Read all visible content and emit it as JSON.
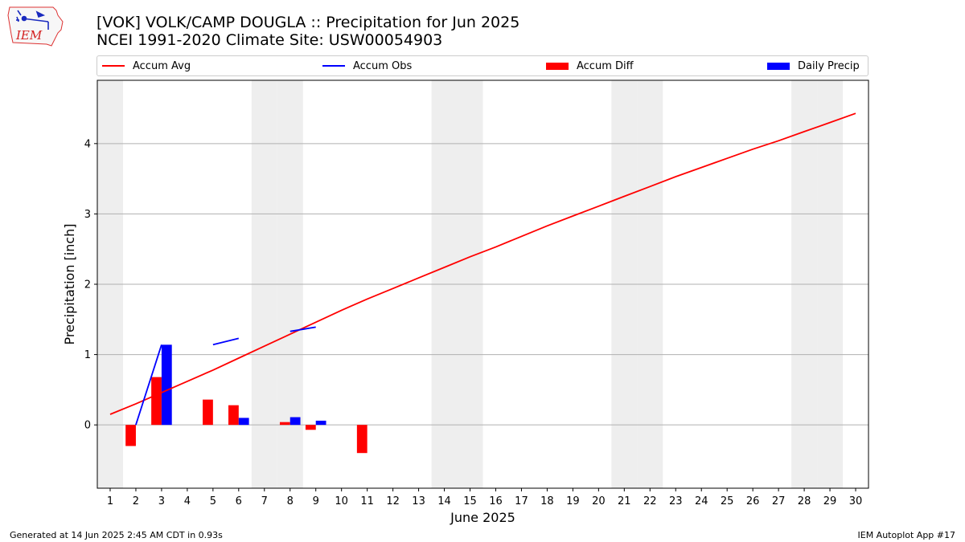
{
  "logo": {
    "text": "IEM"
  },
  "title_line1": "[VOK] VOLK/CAMP DOUGLA :: Precipitation for Jun 2025",
  "title_line2": "NCEI 1991-2020 Climate Site: USW00054903",
  "legend": [
    {
      "label": "Accum Avg",
      "color": "#ff0000",
      "kind": "line"
    },
    {
      "label": "Accum Obs",
      "color": "#0000ff",
      "kind": "line"
    },
    {
      "label": "Accum Diff",
      "color": "#ff0000",
      "kind": "box"
    },
    {
      "label": "Daily Precip",
      "color": "#0000ff",
      "kind": "box"
    }
  ],
  "footer_left": "Generated at 14 Jun 2025 2:45 AM CDT in 0.93s",
  "footer_right": "IEM Autoplot App #17",
  "chart_data": {
    "type": "bar",
    "xlabel": "June 2025",
    "ylabel": "Precipitation [inch]",
    "x": [
      1,
      2,
      3,
      4,
      5,
      6,
      7,
      8,
      9,
      10,
      11,
      12,
      13,
      14,
      15,
      16,
      17,
      18,
      19,
      20,
      21,
      22,
      23,
      24,
      25,
      26,
      27,
      28,
      29,
      30
    ],
    "xlim": [
      0.5,
      30.5
    ],
    "ylim": [
      -0.9,
      4.9
    ],
    "yticks": [
      0,
      1,
      2,
      3,
      4
    ],
    "grid": "y",
    "weekend_shading_days": [
      1,
      7,
      8,
      14,
      15,
      21,
      22,
      28,
      29
    ],
    "series": [
      {
        "name": "Accum Avg",
        "type": "line",
        "color": "#ff0000",
        "values": [
          0.15,
          0.3,
          0.46,
          0.62,
          0.78,
          0.95,
          1.12,
          1.29,
          1.46,
          1.63,
          1.79,
          1.94,
          2.09,
          2.24,
          2.39,
          2.53,
          2.68,
          2.83,
          2.97,
          3.11,
          3.25,
          3.39,
          3.53,
          3.66,
          3.79,
          3.92,
          4.04,
          4.17,
          4.3,
          4.43
        ]
      },
      {
        "name": "Accum Obs",
        "type": "line",
        "color": "#0000ff",
        "values": [
          null,
          0.0,
          1.14,
          null,
          1.14,
          1.23,
          null,
          1.33,
          1.39,
          null,
          null,
          null,
          null,
          null,
          null,
          null,
          null,
          null,
          null,
          null,
          null,
          null,
          null,
          null,
          null,
          null,
          null,
          null,
          null,
          null
        ]
      },
      {
        "name": "Accum Diff",
        "type": "bar",
        "color": "#ff0000",
        "values": [
          null,
          -0.3,
          0.68,
          null,
          0.36,
          0.28,
          null,
          0.04,
          -0.07,
          null,
          -0.4,
          null,
          null,
          null,
          null,
          null,
          null,
          null,
          null,
          null,
          null,
          null,
          null,
          null,
          null,
          null,
          null,
          null,
          null,
          null
        ]
      },
      {
        "name": "Daily Precip",
        "type": "bar",
        "color": "#0000ff",
        "values": [
          null,
          null,
          1.14,
          null,
          null,
          0.1,
          null,
          0.11,
          0.06,
          null,
          null,
          null,
          null,
          null,
          null,
          null,
          null,
          null,
          null,
          null,
          null,
          null,
          null,
          null,
          null,
          null,
          null,
          null,
          null,
          null
        ]
      }
    ]
  }
}
